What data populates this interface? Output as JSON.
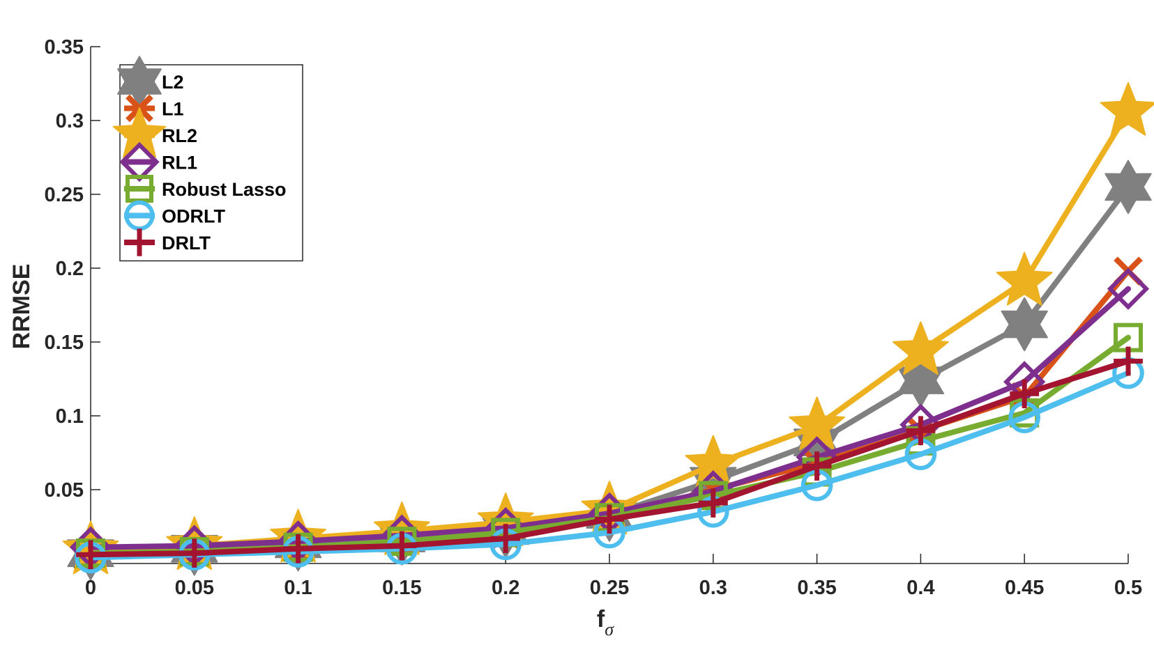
{
  "chart_data": {
    "type": "line",
    "title": "",
    "xlabel": "f",
    "xlabel_sub": "σ",
    "ylabel": "RRMSE",
    "x": [
      0,
      0.05,
      0.1,
      0.15,
      0.2,
      0.25,
      0.3,
      0.35,
      0.4,
      0.45,
      0.5
    ],
    "xlim": [
      0,
      0.5
    ],
    "ylim": [
      0,
      0.35
    ],
    "xticks": [
      0,
      0.05,
      0.1,
      0.15,
      0.2,
      0.25,
      0.3,
      0.35,
      0.4,
      0.45,
      0.5
    ],
    "xtick_labels": [
      "0",
      "0.05",
      "0.1",
      "0.15",
      "0.2",
      "0.25",
      "0.3",
      "0.35",
      "0.4",
      "0.45",
      "0.5"
    ],
    "yticks": [
      0,
      0.05,
      0.1,
      0.15,
      0.2,
      0.25,
      0.3,
      0.35
    ],
    "ytick_labels": [
      "0",
      "0.05",
      "0.1",
      "0.15",
      "0.2",
      "0.25",
      "0.3",
      "0.35"
    ],
    "grid": false,
    "legend_position": "top-left",
    "series": [
      {
        "name": "L2",
        "color": "#808080",
        "marker": "hexagram",
        "values": [
          0.007,
          0.01,
          0.013,
          0.017,
          0.022,
          0.033,
          0.056,
          0.082,
          0.124,
          0.162,
          0.255
        ]
      },
      {
        "name": "L1",
        "color": "#D95319",
        "marker": "x",
        "values": [
          0.006,
          0.008,
          0.011,
          0.014,
          0.02,
          0.031,
          0.05,
          0.068,
          0.09,
          0.113,
          0.198
        ]
      },
      {
        "name": "RL2",
        "color": "#EDB120",
        "marker": "pentagram",
        "values": [
          0.009,
          0.012,
          0.017,
          0.022,
          0.028,
          0.036,
          0.067,
          0.093,
          0.144,
          0.191,
          0.306
        ]
      },
      {
        "name": "RL1",
        "color": "#7E2F8E",
        "marker": "diamond",
        "values": [
          0.011,
          0.012,
          0.015,
          0.019,
          0.024,
          0.034,
          0.049,
          0.072,
          0.094,
          0.123,
          0.186
        ]
      },
      {
        "name": "Robust Lasso",
        "color": "#77AC30",
        "marker": "square",
        "values": [
          0.007,
          0.008,
          0.011,
          0.015,
          0.021,
          0.031,
          0.046,
          0.062,
          0.083,
          0.102,
          0.153
        ]
      },
      {
        "name": "ODRLT",
        "color": "#4DBEEE",
        "marker": "circle",
        "values": [
          0.004,
          0.006,
          0.008,
          0.01,
          0.013,
          0.021,
          0.035,
          0.053,
          0.074,
          0.099,
          0.129
        ]
      },
      {
        "name": "DRLT",
        "color": "#A2142F",
        "marker": "plus",
        "values": [
          0.006,
          0.007,
          0.01,
          0.012,
          0.017,
          0.03,
          0.041,
          0.066,
          0.09,
          0.115,
          0.137
        ]
      }
    ]
  }
}
